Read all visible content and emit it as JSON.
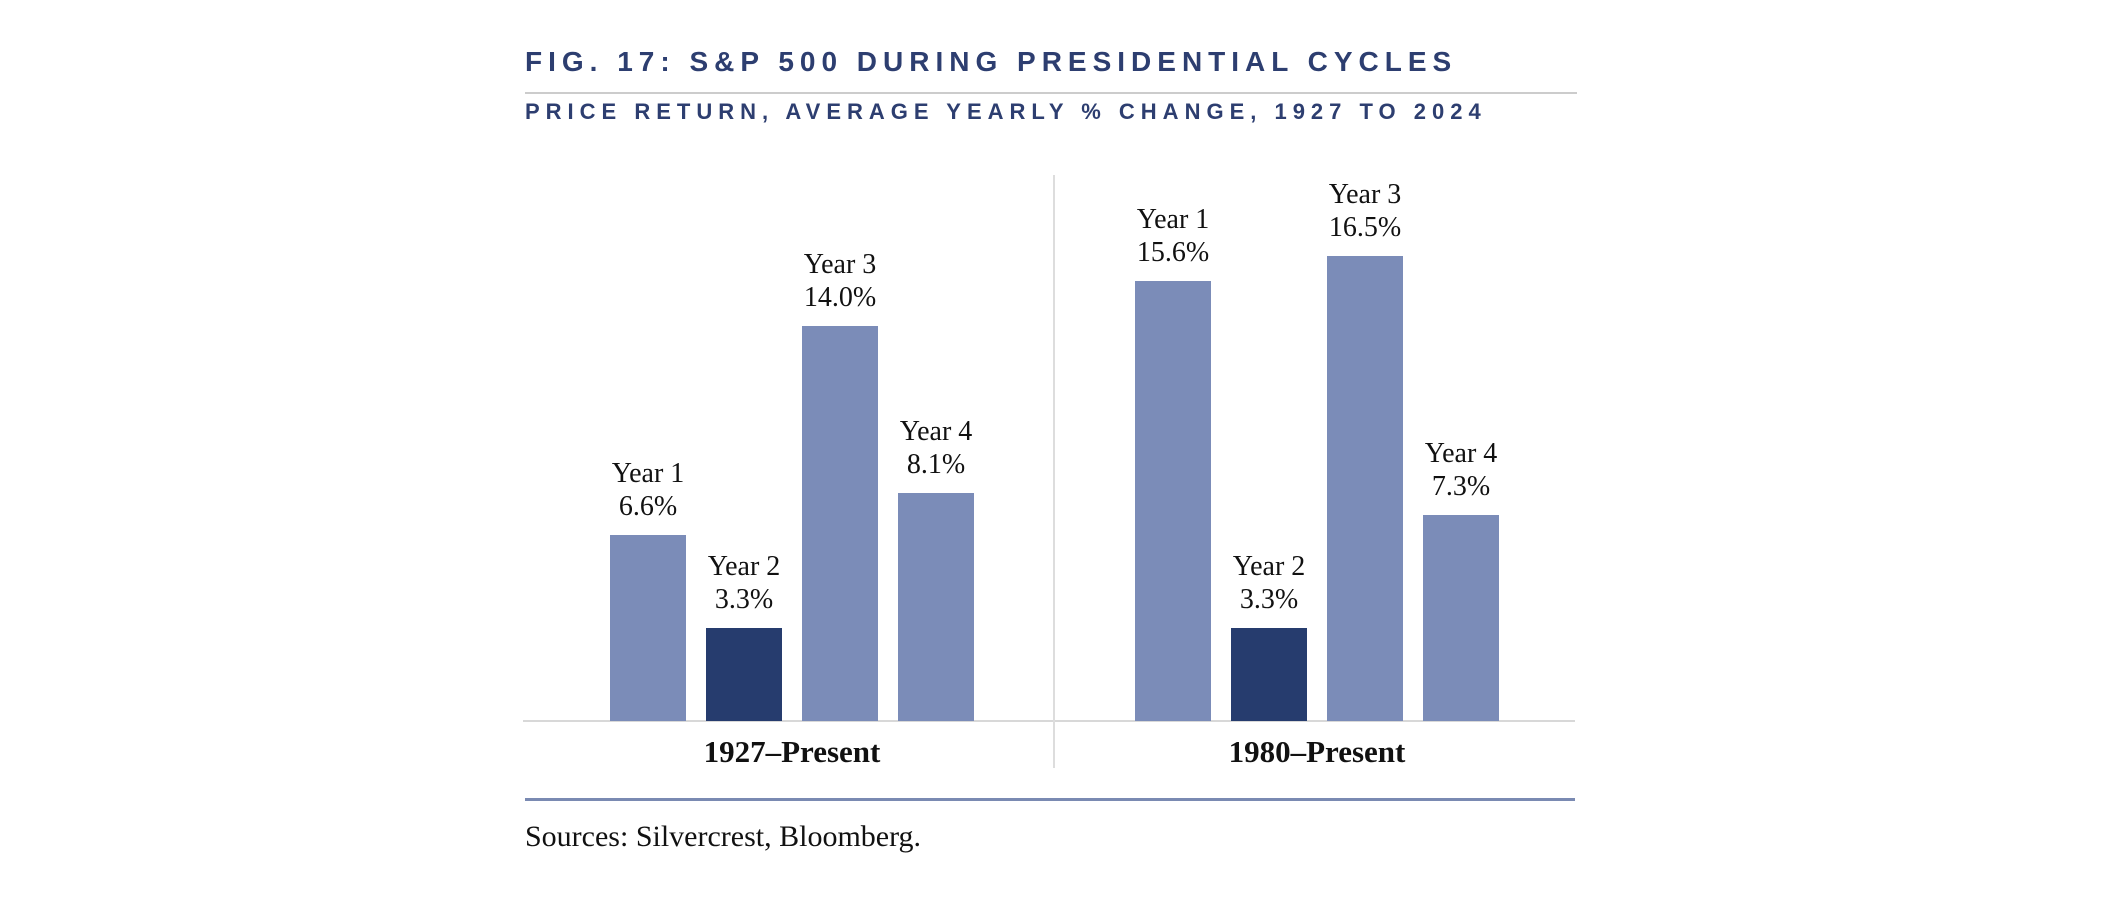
{
  "header": {
    "title": "FIG. 17: S&P 500 DURING PRESIDENTIAL CYCLES",
    "subtitle": "PRICE RETURN, AVERAGE YEARLY % CHANGE, 1927 TO 2024"
  },
  "chart_data": {
    "type": "bar",
    "title": "FIG. 17: S&P 500 DURING PRESIDENTIAL CYCLES",
    "subtitle": "PRICE RETURN, AVERAGE YEARLY % CHANGE, 1927 TO 2024",
    "categories": [
      "Year 1",
      "Year 2",
      "Year 3",
      "Year 4"
    ],
    "groups": [
      {
        "label": "1927–Present",
        "values": [
          6.6,
          3.3,
          14.0,
          8.1
        ]
      },
      {
        "label": "1980–Present",
        "values": [
          15.6,
          3.3,
          16.5,
          7.3
        ]
      }
    ],
    "value_label_suffix": "%",
    "highlight_category": "Year 2",
    "colors": {
      "bar": "#7b8cb8",
      "highlight": "#263c6e"
    },
    "ylim": [
      0,
      17.5
    ],
    "grid": false,
    "legend": false,
    "y_axis_shown": false
  },
  "footer": {
    "sources": "Sources: Silvercrest, Bloomberg."
  }
}
